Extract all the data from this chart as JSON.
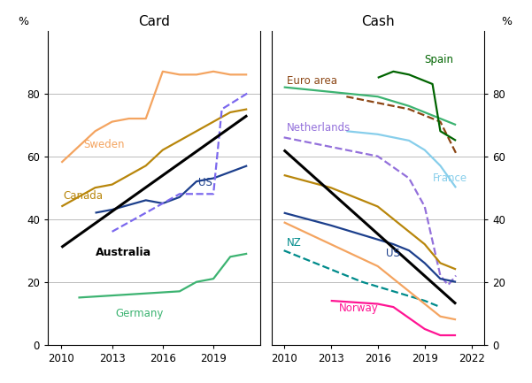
{
  "card": {
    "title": "Card",
    "australia": {
      "x": [
        2010,
        2021
      ],
      "y": [
        31,
        73
      ],
      "color": "#000000",
      "lw": 2.2
    },
    "sweden": {
      "x": [
        2010,
        2012,
        2013,
        2014,
        2015,
        2016,
        2017,
        2018,
        2019,
        2020,
        2021
      ],
      "y": [
        58,
        68,
        71,
        72,
        72,
        87,
        86,
        86,
        87,
        86,
        86
      ],
      "color": "#F4A460",
      "lw": 1.6
    },
    "canada": {
      "x": [
        2010,
        2012,
        2013,
        2014,
        2015,
        2016,
        2017,
        2018,
        2019,
        2020,
        2021
      ],
      "y": [
        44,
        50,
        51,
        54,
        57,
        62,
        65,
        68,
        71,
        74,
        75
      ],
      "color": "#B8860B",
      "lw": 1.6
    },
    "us": {
      "x": [
        2012,
        2013,
        2015,
        2016,
        2017,
        2018,
        2019,
        2020,
        2021
      ],
      "y": [
        42,
        43,
        46,
        45,
        47,
        52,
        53,
        55,
        57
      ],
      "color": "#1C3F8C",
      "lw": 1.6
    },
    "germany": {
      "x": [
        2011,
        2014,
        2017,
        2018,
        2019,
        2020,
        2021
      ],
      "y": [
        15,
        16,
        17,
        20,
        21,
        28,
        29
      ],
      "color": "#3CB371",
      "lw": 1.6
    },
    "nz": {
      "x": [
        2013,
        2015,
        2017,
        2019,
        2019.5,
        2021
      ],
      "y": [
        36,
        42,
        48,
        48,
        75,
        80
      ],
      "color": "#7B68EE",
      "lw": 1.6,
      "dashed": true
    }
  },
  "cash": {
    "title": "Cash",
    "australia": {
      "x": [
        2010,
        2021
      ],
      "y": [
        62,
        13
      ],
      "color": "#000000",
      "lw": 2.2
    },
    "spain": {
      "x": [
        2016,
        2017,
        2018,
        2019,
        2019.5,
        2020,
        2021
      ],
      "y": [
        85,
        87,
        86,
        84,
        83,
        68,
        65
      ],
      "color": "#006400",
      "lw": 1.6
    },
    "euro_area": {
      "x": [
        2010,
        2012,
        2014,
        2016,
        2018,
        2019,
        2020,
        2021
      ],
      "y": [
        82,
        81,
        80,
        79,
        76,
        74,
        72,
        70
      ],
      "color": "#3CB371",
      "lw": 1.6
    },
    "euro_dashed": {
      "x": [
        2014,
        2016,
        2018,
        2019,
        2020,
        2021
      ],
      "y": [
        79,
        77,
        75,
        73,
        71,
        61
      ],
      "color": "#8B4513",
      "lw": 1.6,
      "dashed": true
    },
    "netherlands": {
      "x": [
        2010,
        2012,
        2014,
        2016,
        2018,
        2019,
        2020,
        2020.5,
        2021
      ],
      "y": [
        66,
        64,
        62,
        60,
        53,
        44,
        22,
        19,
        22
      ],
      "color": "#9370DB",
      "lw": 1.6,
      "dashed": true
    },
    "france": {
      "x": [
        2014,
        2016,
        2018,
        2019,
        2020,
        2021
      ],
      "y": [
        68,
        67,
        65,
        62,
        57,
        50
      ],
      "color": "#87CEEB",
      "lw": 1.6
    },
    "us_cash": {
      "x": [
        2010,
        2013,
        2015,
        2017,
        2018,
        2019,
        2020,
        2021
      ],
      "y": [
        42,
        38,
        35,
        32,
        30,
        26,
        21,
        20
      ],
      "color": "#1C3F8C",
      "lw": 1.6
    },
    "canada_cash": {
      "x": [
        2010,
        2013,
        2016,
        2019,
        2020,
        2021
      ],
      "y": [
        54,
        50,
        44,
        32,
        26,
        24
      ],
      "color": "#B8860B",
      "lw": 1.6
    },
    "nz_cash": {
      "x": [
        2010,
        2013,
        2015,
        2017,
        2019,
        2020
      ],
      "y": [
        30,
        24,
        20,
        17,
        14,
        12
      ],
      "color": "#008B8B",
      "lw": 1.6,
      "dashed": true
    },
    "norway": {
      "x": [
        2013,
        2016,
        2017,
        2019,
        2019.5,
        2020,
        2021
      ],
      "y": [
        14,
        13,
        12,
        5,
        4,
        3,
        3
      ],
      "color": "#FF1493",
      "lw": 1.6
    },
    "au_cash2": {
      "x": [
        2010,
        2013,
        2016,
        2019,
        2020,
        2021
      ],
      "y": [
        39,
        32,
        25,
        13,
        9,
        8
      ],
      "color": "#F4A460",
      "lw": 1.6
    }
  },
  "yticks": [
    0,
    20,
    40,
    60,
    80
  ],
  "ytick_labels": [
    "0",
    "20",
    "40",
    "60",
    "80"
  ],
  "xticks_card": [
    2010,
    2013,
    2016,
    2019
  ],
  "xticks_cash": [
    2010,
    2013,
    2016,
    2019,
    2022
  ],
  "grid_color": "#bbbbbb",
  "label_fontsize": 8.5,
  "title_fontsize": 11
}
